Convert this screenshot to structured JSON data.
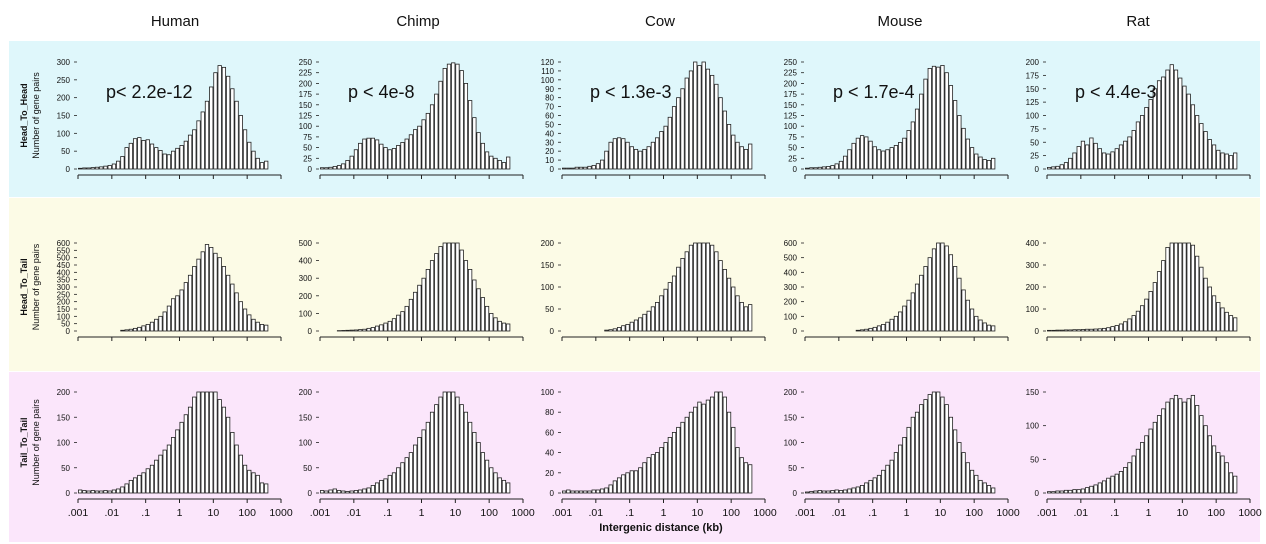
{
  "figure": {
    "columns": [
      "Human",
      "Chimp",
      "Cow",
      "Mouse",
      "Rat"
    ],
    "rows": [
      "Head_To_Head",
      "Head_To_Tail",
      "Tail_To_Tail"
    ],
    "ylabel": "Number of gene pairs",
    "xlabel": "Intergenic distance (kb)",
    "x_ticks": [
      ".001",
      ".01",
      ".1",
      "1",
      "10",
      "100",
      "1000"
    ],
    "row_colors": [
      "#dff7fb",
      "#fcfbe6",
      "#fbe6fb"
    ]
  },
  "chart_data": [
    {
      "type": "bar",
      "row": "Head_To_Head",
      "column": "Human",
      "annotation": "p< 2.2e-12",
      "xscale": "log",
      "xlim": [
        0.001,
        1000
      ],
      "ylim": [
        0,
        300
      ],
      "yticks": [
        0,
        50,
        100,
        150,
        200,
        250,
        300
      ],
      "bins": 48,
      "values": [
        2,
        3,
        3,
        4,
        5,
        6,
        8,
        10,
        14,
        22,
        35,
        60,
        72,
        85,
        88,
        80,
        82,
        70,
        60,
        52,
        42,
        40,
        50,
        58,
        66,
        78,
        95,
        110,
        135,
        160,
        190,
        230,
        270,
        290,
        285,
        260,
        225,
        190,
        150,
        110,
        75,
        50,
        30,
        18,
        22,
        0,
        0,
        0
      ]
    },
    {
      "type": "bar",
      "row": "Head_To_Head",
      "column": "Chimp",
      "annotation": "p < 4e-8",
      "xscale": "log",
      "xlim": [
        0.001,
        1000
      ],
      "ylim": [
        0,
        250
      ],
      "yticks": [
        0,
        25,
        50,
        75,
        100,
        125,
        150,
        175,
        200,
        225,
        250
      ],
      "bins": 48,
      "values": [
        3,
        3,
        4,
        6,
        8,
        12,
        20,
        30,
        45,
        60,
        70,
        72,
        72,
        68,
        58,
        50,
        45,
        48,
        55,
        62,
        70,
        80,
        92,
        100,
        115,
        130,
        150,
        175,
        205,
        235,
        245,
        248,
        245,
        230,
        200,
        160,
        120,
        85,
        60,
        40,
        30,
        25,
        20,
        15,
        28,
        0,
        0,
        0
      ]
    },
    {
      "type": "bar",
      "row": "Head_To_Head",
      "column": "Cow",
      "annotation": "p < 1.3e-3",
      "xscale": "log",
      "xlim": [
        0.001,
        1000
      ],
      "ylim": [
        0,
        120
      ],
      "yticks": [
        0,
        10,
        20,
        30,
        40,
        50,
        60,
        70,
        80,
        90,
        100,
        110,
        120
      ],
      "bins": 48,
      "values": [
        1,
        1,
        1,
        2,
        2,
        2,
        3,
        4,
        6,
        10,
        20,
        30,
        34,
        35,
        34,
        30,
        25,
        22,
        20,
        22,
        25,
        30,
        35,
        42,
        48,
        58,
        70,
        80,
        90,
        102,
        110,
        122,
        116,
        120,
        112,
        105,
        95,
        80,
        65,
        50,
        38,
        30,
        25,
        22,
        28,
        0,
        0,
        0
      ]
    },
    {
      "type": "bar",
      "row": "Head_To_Head",
      "column": "Mouse",
      "annotation": "p < 1.7e-4",
      "xscale": "log",
      "xlim": [
        0.001,
        1000
      ],
      "ylim": [
        0,
        250
      ],
      "yticks": [
        0,
        25,
        50,
        75,
        100,
        125,
        150,
        175,
        200,
        225,
        250
      ],
      "bins": 48,
      "values": [
        2,
        3,
        3,
        4,
        5,
        6,
        8,
        12,
        18,
        30,
        45,
        60,
        72,
        78,
        75,
        65,
        52,
        45,
        42,
        45,
        50,
        55,
        62,
        72,
        90,
        110,
        140,
        175,
        210,
        235,
        240,
        238,
        242,
        225,
        195,
        160,
        125,
        95,
        70,
        50,
        35,
        28,
        22,
        20,
        25,
        0,
        0,
        0
      ]
    },
    {
      "type": "bar",
      "row": "Head_To_Head",
      "column": "Rat",
      "annotation": "p < 4.4e-3",
      "xscale": "log",
      "xlim": [
        0.001,
        1000
      ],
      "ylim": [
        0,
        200
      ],
      "yticks": [
        0,
        25,
        50,
        75,
        100,
        125,
        150,
        175,
        200
      ],
      "bins": 48,
      "values": [
        3,
        4,
        5,
        8,
        12,
        20,
        30,
        42,
        52,
        45,
        58,
        48,
        38,
        30,
        28,
        32,
        38,
        45,
        52,
        60,
        72,
        88,
        100,
        115,
        130,
        150,
        165,
        172,
        185,
        195,
        185,
        170,
        155,
        140,
        120,
        100,
        85,
        70,
        55,
        45,
        35,
        30,
        28,
        25,
        30,
        0,
        0,
        0
      ]
    },
    {
      "type": "bar",
      "row": "Head_To_Tail",
      "column": "Human",
      "xscale": "log",
      "xlim": [
        0.001,
        1000
      ],
      "ylim": [
        0,
        600
      ],
      "yticks": [
        0,
        50,
        100,
        150,
        200,
        250,
        300,
        350,
        400,
        450,
        500,
        550,
        600
      ],
      "bins": 48,
      "values": [
        0,
        0,
        0,
        0,
        0,
        0,
        0,
        0,
        0,
        0,
        5,
        8,
        12,
        18,
        25,
        35,
        45,
        60,
        80,
        100,
        130,
        170,
        220,
        240,
        280,
        330,
        380,
        440,
        490,
        540,
        590,
        570,
        530,
        500,
        440,
        380,
        320,
        260,
        200,
        150,
        110,
        80,
        60,
        45,
        40,
        0,
        0,
        0
      ]
    },
    {
      "type": "bar",
      "row": "Head_To_Tail",
      "column": "Chimp",
      "xscale": "log",
      "xlim": [
        0.001,
        1000
      ],
      "ylim": [
        0,
        500
      ],
      "yticks": [
        0,
        100,
        200,
        300,
        400,
        500
      ],
      "bins": 48,
      "values": [
        0,
        0,
        0,
        0,
        2,
        3,
        4,
        5,
        6,
        8,
        10,
        15,
        20,
        28,
        35,
        45,
        55,
        70,
        90,
        110,
        140,
        180,
        220,
        260,
        300,
        350,
        400,
        440,
        480,
        520,
        560,
        540,
        500,
        460,
        400,
        350,
        290,
        240,
        190,
        140,
        100,
        75,
        55,
        45,
        40,
        0,
        0,
        0
      ]
    },
    {
      "type": "bar",
      "row": "Head_To_Tail",
      "column": "Cow",
      "xscale": "log",
      "xlim": [
        0.001,
        1000
      ],
      "ylim": [
        0,
        200
      ],
      "yticks": [
        0,
        50,
        100,
        150,
        200
      ],
      "bins": 48,
      "values": [
        0,
        0,
        0,
        0,
        0,
        0,
        0,
        0,
        0,
        0,
        2,
        3,
        5,
        8,
        12,
        15,
        20,
        25,
        30,
        38,
        45,
        55,
        65,
        80,
        95,
        110,
        125,
        145,
        165,
        180,
        195,
        200,
        210,
        215,
        205,
        195,
        180,
        160,
        140,
        120,
        100,
        80,
        65,
        55,
        60,
        0,
        0,
        0
      ]
    },
    {
      "type": "bar",
      "row": "Head_To_Tail",
      "column": "Mouse",
      "xscale": "log",
      "xlim": [
        0.001,
        1000
      ],
      "ylim": [
        0,
        600
      ],
      "yticks": [
        0,
        100,
        200,
        300,
        400,
        500,
        600
      ],
      "bins": 48,
      "values": [
        0,
        0,
        0,
        0,
        0,
        0,
        0,
        0,
        0,
        0,
        0,
        0,
        5,
        8,
        12,
        18,
        25,
        35,
        45,
        60,
        80,
        100,
        130,
        170,
        210,
        260,
        320,
        380,
        440,
        500,
        560,
        600,
        620,
        580,
        520,
        440,
        360,
        280,
        210,
        150,
        100,
        75,
        55,
        40,
        35,
        0,
        0,
        0
      ]
    },
    {
      "type": "bar",
      "row": "Head_To_Tail",
      "column": "Rat",
      "xscale": "log",
      "xlim": [
        0.001,
        1000
      ],
      "ylim": [
        0,
        400
      ],
      "yticks": [
        0,
        100,
        200,
        300,
        400
      ],
      "bins": 48,
      "values": [
        3,
        3,
        4,
        4,
        5,
        5,
        6,
        6,
        7,
        8,
        8,
        9,
        10,
        12,
        15,
        20,
        25,
        32,
        42,
        55,
        70,
        90,
        115,
        145,
        180,
        220,
        270,
        320,
        380,
        440,
        430,
        410,
        420,
        430,
        390,
        340,
        290,
        240,
        200,
        160,
        130,
        105,
        85,
        70,
        60,
        0,
        0,
        0
      ]
    },
    {
      "type": "bar",
      "row": "Tail_To_Tail",
      "column": "Human",
      "xscale": "log",
      "xlim": [
        0.001,
        1000
      ],
      "ylim": [
        0,
        200
      ],
      "yticks": [
        0,
        50,
        100,
        150,
        200
      ],
      "bins": 48,
      "values": [
        6,
        5,
        4,
        5,
        4,
        4,
        5,
        4,
        6,
        8,
        12,
        18,
        25,
        30,
        35,
        40,
        48,
        55,
        65,
        75,
        85,
        95,
        110,
        125,
        140,
        155,
        170,
        190,
        205,
        215,
        210,
        215,
        200,
        185,
        170,
        150,
        120,
        95,
        75,
        55,
        45,
        40,
        35,
        20,
        18,
        0,
        0,
        0
      ]
    },
    {
      "type": "bar",
      "row": "Tail_To_Tail",
      "column": "Chimp",
      "xscale": "log",
      "xlim": [
        0.001,
        1000
      ],
      "ylim": [
        0,
        200
      ],
      "yticks": [
        0,
        50,
        100,
        150,
        200
      ],
      "bins": 48,
      "values": [
        5,
        4,
        6,
        8,
        5,
        4,
        3,
        4,
        5,
        6,
        8,
        10,
        15,
        20,
        25,
        28,
        35,
        40,
        50,
        60,
        70,
        80,
        95,
        110,
        125,
        140,
        160,
        175,
        190,
        210,
        215,
        200,
        190,
        175,
        160,
        140,
        120,
        100,
        80,
        65,
        50,
        40,
        30,
        25,
        20,
        0,
        0,
        0
      ]
    },
    {
      "type": "bar",
      "row": "Tail_To_Tail",
      "column": "Cow",
      "xscale": "log",
      "xlim": [
        0.001,
        1000
      ],
      "ylim": [
        0,
        100
      ],
      "yticks": [
        0,
        20,
        40,
        60,
        80,
        100
      ],
      "bins": 48,
      "values": [
        2,
        3,
        2,
        2,
        2,
        2,
        2,
        3,
        3,
        4,
        5,
        8,
        12,
        15,
        18,
        20,
        22,
        22,
        25,
        30,
        35,
        38,
        40,
        45,
        50,
        55,
        60,
        65,
        70,
        75,
        80,
        85,
        90,
        88,
        92,
        95,
        100,
        105,
        95,
        80,
        65,
        45,
        35,
        30,
        28,
        0,
        0,
        0
      ]
    },
    {
      "type": "bar",
      "row": "Tail_To_Tail",
      "column": "Mouse",
      "xscale": "log",
      "xlim": [
        0.001,
        1000
      ],
      "ylim": [
        0,
        200
      ],
      "yticks": [
        0,
        50,
        100,
        150,
        200
      ],
      "bins": 48,
      "values": [
        2,
        3,
        4,
        5,
        4,
        4,
        5,
        6,
        5,
        6,
        8,
        10,
        12,
        15,
        20,
        25,
        30,
        35,
        45,
        55,
        65,
        80,
        95,
        110,
        130,
        150,
        160,
        175,
        185,
        195,
        205,
        200,
        190,
        175,
        150,
        125,
        100,
        80,
        60,
        45,
        35,
        25,
        20,
        15,
        10,
        0,
        0,
        0
      ]
    },
    {
      "type": "bar",
      "row": "Tail_To_Tail",
      "column": "Rat",
      "xscale": "log",
      "xlim": [
        0.001,
        1000
      ],
      "ylim": [
        0,
        150
      ],
      "yticks": [
        0,
        50,
        100,
        150
      ],
      "bins": 48,
      "values": [
        2,
        2,
        3,
        3,
        4,
        4,
        5,
        5,
        6,
        8,
        10,
        12,
        15,
        18,
        22,
        25,
        28,
        32,
        38,
        45,
        55,
        65,
        75,
        85,
        95,
        105,
        115,
        125,
        135,
        140,
        145,
        140,
        135,
        140,
        145,
        130,
        115,
        100,
        85,
        70,
        60,
        55,
        45,
        30,
        25,
        0,
        0,
        0
      ]
    }
  ]
}
